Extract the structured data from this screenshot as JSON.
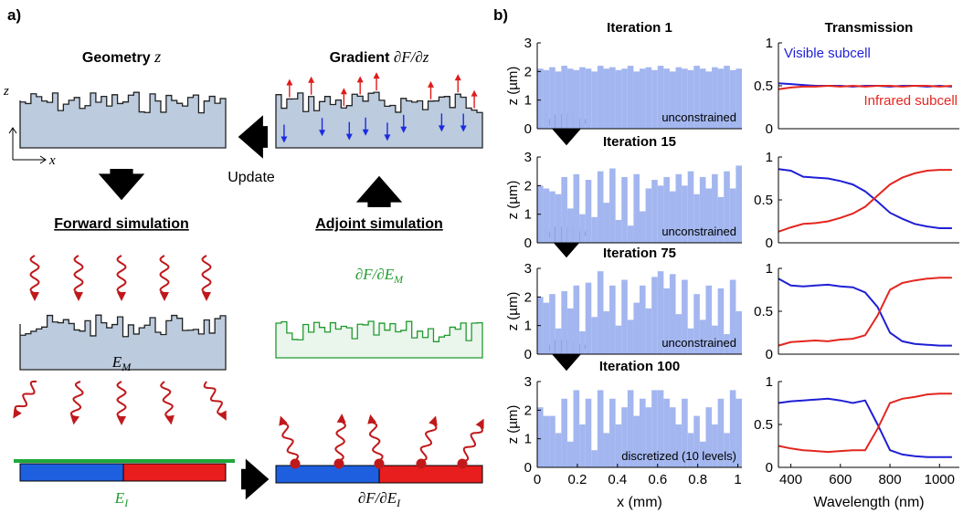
{
  "diagram": {
    "panel_label": "a)",
    "geometry": {
      "text": "Geometry",
      "var": "z"
    },
    "gradient": {
      "text": "Gradient",
      "var": "∂F/∂z"
    },
    "update": "Update",
    "axis_z": "z",
    "axis_x": "x",
    "forward": "Forward simulation",
    "adjoint": "Adjoint simulation",
    "adjoint_source": {
      "main": "∂F/∂E",
      "sub": "M"
    },
    "field_m": {
      "main": "E",
      "sub": "M"
    },
    "field_i": {
      "main": "E",
      "sub": "I"
    },
    "adjoint_field": {
      "main": "∂F/∂E",
      "sub": "I"
    },
    "panel_b_label": "b)"
  },
  "chart_data": [
    {
      "type": "bar",
      "title": "Iteration 1",
      "ylabel": "z (µm)",
      "annotation": "unconstrained",
      "color": "#a3b6ef",
      "x": [
        0.015,
        0.045,
        0.075,
        0.105,
        0.135,
        0.165,
        0.195,
        0.225,
        0.255,
        0.285,
        0.315,
        0.345,
        0.375,
        0.405,
        0.435,
        0.465,
        0.495,
        0.525,
        0.555,
        0.585,
        0.615,
        0.645,
        0.675,
        0.705,
        0.735,
        0.765,
        0.795,
        0.825,
        0.855,
        0.885,
        0.915,
        0.945,
        0.975,
        1.005
      ],
      "values": [
        2.1,
        2.05,
        2.15,
        2.0,
        2.2,
        2.1,
        2.05,
        2.15,
        2.1,
        2.0,
        2.2,
        2.1,
        2.15,
        2.05,
        2.1,
        2.2,
        2.0,
        2.1,
        2.15,
        2.05,
        2.2,
        2.1,
        2.0,
        2.15,
        2.1,
        2.05,
        2.2,
        2.1,
        2.0,
        2.15,
        2.1,
        2.2,
        2.05,
        2.1
      ],
      "xlim": [
        0,
        1.02
      ],
      "ylim": [
        0,
        3
      ],
      "yticks": [
        0,
        1,
        2,
        3
      ]
    },
    {
      "type": "bar",
      "title": "Iteration 15",
      "ylabel": "z (µm)",
      "annotation": "unconstrained",
      "color": "#a3b6ef",
      "x": [
        0.015,
        0.045,
        0.075,
        0.105,
        0.135,
        0.165,
        0.195,
        0.225,
        0.255,
        0.285,
        0.315,
        0.345,
        0.375,
        0.405,
        0.435,
        0.465,
        0.495,
        0.525,
        0.555,
        0.585,
        0.615,
        0.645,
        0.675,
        0.705,
        0.735,
        0.765,
        0.795,
        0.825,
        0.855,
        0.885,
        0.915,
        0.945,
        0.975,
        1.005
      ],
      "values": [
        2.0,
        1.9,
        1.8,
        1.7,
        2.3,
        1.2,
        2.4,
        1.0,
        2.2,
        0.9,
        2.5,
        1.4,
        2.6,
        0.8,
        2.3,
        0.6,
        2.4,
        1.1,
        1.9,
        2.2,
        2.0,
        2.3,
        1.8,
        2.4,
        2.0,
        2.5,
        1.7,
        2.3,
        1.9,
        2.4,
        1.6,
        2.5,
        1.9,
        2.7
      ],
      "xlim": [
        0,
        1.02
      ],
      "ylim": [
        0,
        3
      ],
      "yticks": [
        0,
        1,
        2,
        3
      ]
    },
    {
      "type": "bar",
      "title": "Iteration 75",
      "ylabel": "z (µm)",
      "annotation": "unconstrained",
      "color": "#a3b6ef",
      "x": [
        0.015,
        0.045,
        0.075,
        0.105,
        0.135,
        0.165,
        0.195,
        0.225,
        0.255,
        0.285,
        0.315,
        0.345,
        0.375,
        0.405,
        0.435,
        0.465,
        0.495,
        0.525,
        0.555,
        0.585,
        0.615,
        0.645,
        0.675,
        0.705,
        0.735,
        0.765,
        0.795,
        0.825,
        0.855,
        0.885,
        0.915,
        0.945,
        0.975,
        1.005
      ],
      "values": [
        2.0,
        1.8,
        2.1,
        0.9,
        2.2,
        1.6,
        2.4,
        0.8,
        2.5,
        1.3,
        2.9,
        1.5,
        2.4,
        1.0,
        2.6,
        1.2,
        1.8,
        2.4,
        1.6,
        2.7,
        2.9,
        2.3,
        2.8,
        1.4,
        2.6,
        0.9,
        2.1,
        1.2,
        2.4,
        1.0,
        2.3,
        0.7,
        2.6,
        1.5
      ],
      "xlim": [
        0,
        1.02
      ],
      "ylim": [
        0,
        3
      ],
      "yticks": [
        0,
        1,
        2,
        3
      ]
    },
    {
      "type": "bar",
      "title": "Iteration 100",
      "ylabel": "z (µm)",
      "xlabel": "x (mm)",
      "annotation": "discretized (10 levels)",
      "color": "#a3b6ef",
      "x": [
        0.015,
        0.045,
        0.075,
        0.105,
        0.135,
        0.165,
        0.195,
        0.225,
        0.255,
        0.285,
        0.315,
        0.345,
        0.375,
        0.405,
        0.435,
        0.465,
        0.495,
        0.525,
        0.555,
        0.585,
        0.615,
        0.645,
        0.675,
        0.705,
        0.735,
        0.765,
        0.795,
        0.825,
        0.855,
        0.885,
        0.915,
        0.945,
        0.975,
        1.005
      ],
      "values": [
        2.1,
        1.8,
        1.8,
        1.2,
        2.4,
        0.9,
        2.7,
        1.5,
        2.4,
        0.6,
        2.7,
        1.2,
        2.4,
        1.5,
        2.1,
        2.7,
        1.8,
        2.4,
        2.1,
        2.7,
        2.7,
        2.4,
        2.1,
        1.5,
        2.4,
        1.2,
        1.8,
        0.9,
        2.1,
        1.5,
        2.4,
        1.2,
        2.7,
        2.4
      ],
      "xlim": [
        0,
        1.02
      ],
      "ylim": [
        0,
        3
      ],
      "yticks": [
        0,
        1,
        2,
        3
      ],
      "xticks": [
        0,
        0.2,
        0.4,
        0.6,
        0.8,
        1
      ]
    },
    {
      "type": "line",
      "title": "Transmission",
      "x": [
        350,
        400,
        450,
        500,
        550,
        600,
        650,
        700,
        750,
        800,
        850,
        900,
        950,
        1000,
        1050
      ],
      "series": [
        {
          "name": "Visible subcell",
          "color": "#1f1fd6",
          "values": [
            0.53,
            0.52,
            0.51,
            0.5,
            0.5,
            0.5,
            0.49,
            0.5,
            0.5,
            0.49,
            0.5,
            0.5,
            0.49,
            0.5,
            0.49
          ]
        },
        {
          "name": "Infrared subcell",
          "color": "#e3261f",
          "values": [
            0.46,
            0.48,
            0.49,
            0.49,
            0.5,
            0.49,
            0.5,
            0.49,
            0.5,
            0.5,
            0.49,
            0.5,
            0.5,
            0.49,
            0.5
          ]
        }
      ],
      "xlim": [
        350,
        1080
      ],
      "ylim": [
        0,
        1
      ],
      "yticks": [
        0,
        0.5,
        1
      ]
    },
    {
      "type": "line",
      "x": [
        350,
        400,
        450,
        500,
        550,
        600,
        650,
        700,
        750,
        800,
        850,
        900,
        950,
        1000,
        1050
      ],
      "series": [
        {
          "color": "#1f1fd6",
          "values": [
            0.86,
            0.84,
            0.77,
            0.76,
            0.75,
            0.72,
            0.68,
            0.6,
            0.48,
            0.35,
            0.28,
            0.22,
            0.19,
            0.17,
            0.17
          ]
        },
        {
          "color": "#e3261f",
          "values": [
            0.13,
            0.18,
            0.22,
            0.23,
            0.25,
            0.29,
            0.34,
            0.42,
            0.55,
            0.68,
            0.76,
            0.81,
            0.84,
            0.85,
            0.85
          ]
        }
      ],
      "xlim": [
        350,
        1080
      ],
      "ylim": [
        0,
        1
      ],
      "yticks": [
        0,
        0.5,
        1
      ]
    },
    {
      "type": "line",
      "x": [
        350,
        400,
        450,
        500,
        550,
        600,
        650,
        700,
        750,
        800,
        850,
        900,
        950,
        1000,
        1050
      ],
      "series": [
        {
          "color": "#1f1fd6",
          "values": [
            0.88,
            0.8,
            0.79,
            0.8,
            0.81,
            0.79,
            0.78,
            0.72,
            0.55,
            0.25,
            0.15,
            0.12,
            0.11,
            0.1,
            0.1
          ]
        },
        {
          "color": "#e3261f",
          "values": [
            0.1,
            0.14,
            0.15,
            0.16,
            0.15,
            0.17,
            0.18,
            0.22,
            0.45,
            0.75,
            0.83,
            0.86,
            0.88,
            0.89,
            0.89
          ]
        }
      ],
      "xlim": [
        350,
        1080
      ],
      "ylim": [
        0,
        1
      ],
      "yticks": [
        0,
        0.5,
        1
      ]
    },
    {
      "type": "line",
      "xlabel": "Wavelength (nm)",
      "x": [
        350,
        400,
        450,
        500,
        550,
        600,
        650,
        700,
        750,
        800,
        850,
        900,
        950,
        1000,
        1050
      ],
      "series": [
        {
          "color": "#1f1fd6",
          "values": [
            0.75,
            0.77,
            0.78,
            0.79,
            0.8,
            0.78,
            0.75,
            0.78,
            0.5,
            0.2,
            0.15,
            0.13,
            0.12,
            0.12,
            0.12
          ]
        },
        {
          "color": "#e3261f",
          "values": [
            0.25,
            0.22,
            0.2,
            0.19,
            0.18,
            0.19,
            0.2,
            0.2,
            0.45,
            0.75,
            0.8,
            0.82,
            0.85,
            0.86,
            0.86
          ]
        }
      ],
      "xlim": [
        350,
        1080
      ],
      "ylim": [
        0,
        1
      ],
      "yticks": [
        0,
        0.5,
        1
      ],
      "xticks": [
        400,
        600,
        800,
        1000
      ]
    }
  ]
}
